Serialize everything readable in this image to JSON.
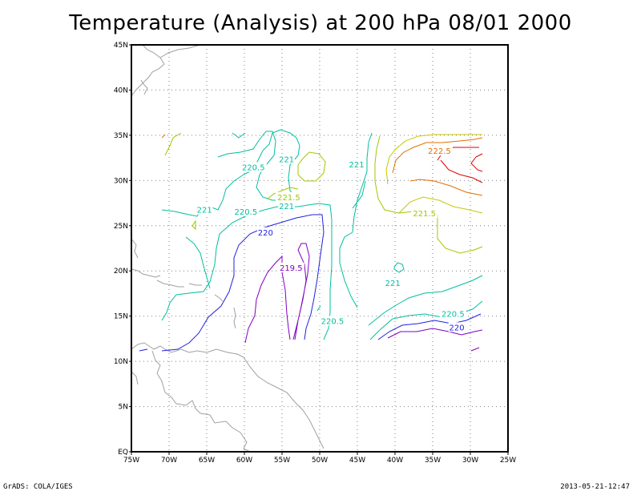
{
  "title": "Temperature (Analysis) at 200 hPa 08/01 2000",
  "lon_labels": [
    "75W",
    "70W",
    "65W",
    "60W",
    "55W",
    "50W",
    "45W",
    "40W",
    "35W",
    "30W",
    "25W"
  ],
  "lat_labels": [
    "EQ",
    "5N",
    "10N",
    "15N",
    "20N",
    "25N",
    "30N",
    "35N",
    "40N",
    "45N"
  ],
  "contour_labels": [
    {
      "text": "221",
      "color": "#00bfa0",
      "lon": -54.4,
      "lat": 32.3
    },
    {
      "text": "220.5",
      "color": "#00bfa0",
      "lon": -58.8,
      "lat": 31.4
    },
    {
      "text": "221",
      "color": "#00bfa0",
      "lon": -45.1,
      "lat": 31.7
    },
    {
      "text": "222.5",
      "color": "#e07000",
      "lon": -34.1,
      "lat": 33.2
    },
    {
      "text": "221.5",
      "color": "#a0c800",
      "lon": -54.1,
      "lat": 28.1
    },
    {
      "text": "221",
      "color": "#00bfa0",
      "lon": -54.4,
      "lat": 27.1
    },
    {
      "text": "221",
      "color": "#00bfa0",
      "lon": -65.3,
      "lat": 26.7
    },
    {
      "text": "220.5",
      "color": "#00bfa0",
      "lon": -59.8,
      "lat": 26.5
    },
    {
      "text": "221.5",
      "color": "#a0c800",
      "lon": -36.1,
      "lat": 26.3
    },
    {
      "text": "220",
      "color": "#2020e0",
      "lon": -57.2,
      "lat": 24.2
    },
    {
      "text": "219.5",
      "color": "#8000c0",
      "lon": -53.8,
      "lat": 20.3
    },
    {
      "text": "221",
      "color": "#00bfa0",
      "lon": -40.3,
      "lat": 18.6
    },
    {
      "text": "220.5",
      "color": "#00bfa0",
      "lon": -32.3,
      "lat": 15.2
    },
    {
      "text": "220.5",
      "color": "#00bfa0",
      "lon": -48.3,
      "lat": 14.4
    },
    {
      "text": "220",
      "color": "#2020e0",
      "lon": -31.8,
      "lat": 13.7
    }
  ],
  "colors": {
    "c219_5": "#8000c0",
    "c220": "#2020e0",
    "c220_5": "#00bfa0",
    "c221": "#00bfa0",
    "c221_5": "#a0c800",
    "c222": "#c8c800",
    "c222_5": "#e07000",
    "c223": "#e00000",
    "coast": "#a0a0a0",
    "grid": "#808080"
  },
  "footer": {
    "left": "GrADS: COLA/IGES",
    "right": "2013-05-21-12:47"
  }
}
